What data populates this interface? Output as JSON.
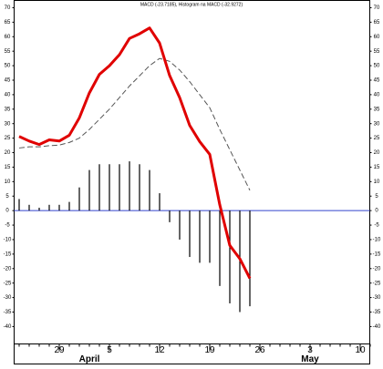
{
  "chart_data": {
    "type": "macd",
    "title": "MACD (-23.7185), Histogram na MACD (-32.9272)",
    "categories": [
      null,
      null,
      null,
      null,
      "29",
      null,
      null,
      null,
      null,
      "5",
      null,
      null,
      null,
      null,
      "12",
      null,
      null,
      null,
      null,
      "19",
      null,
      null,
      null,
      null,
      "26",
      null,
      null,
      null,
      null,
      "3",
      null,
      null,
      null,
      null,
      "10",
      null
    ],
    "months": [
      null,
      null,
      null,
      null,
      null,
      null,
      null,
      "April",
      null,
      null,
      null,
      null,
      null,
      null,
      null,
      null,
      null,
      null,
      null,
      null,
      null,
      null,
      null,
      null,
      null,
      null,
      null,
      null,
      null,
      "May",
      null,
      null,
      null,
      null,
      null,
      null
    ],
    "macd": {
      "color": "#e00000",
      "values": [
        25.6,
        24,
        22.8,
        24.4,
        24,
        26,
        32,
        40.6,
        47,
        50,
        53.8,
        59.4,
        61,
        63,
        57.8,
        46.6,
        39,
        29.4,
        23.8,
        19.4,
        2,
        -12,
        -16.6,
        -23.4,
        null,
        null,
        null,
        null,
        null,
        null,
        null,
        null,
        null,
        null,
        null,
        null
      ]
    },
    "signal": {
      "color": "#555555",
      "dashed": true,
      "values": [
        21.6,
        22,
        22,
        22.4,
        22.6,
        23.5,
        25,
        28,
        31.5,
        35,
        39,
        43,
        46.5,
        50,
        52.5,
        51.5,
        48.5,
        44.5,
        40,
        35.5,
        28,
        21,
        14,
        7,
        null,
        null,
        null,
        null,
        null,
        null,
        null,
        null,
        null,
        null,
        null,
        null
      ]
    },
    "histogram": {
      "color": "#000000",
      "values": [
        4,
        2,
        1,
        2,
        2,
        3,
        8,
        14,
        16,
        16,
        16,
        17,
        16,
        14,
        6,
        -4,
        -10,
        -16,
        -18,
        -18,
        -26,
        -32,
        -35,
        -33,
        null,
        null,
        null,
        null,
        null,
        null,
        null,
        null,
        null,
        null,
        null,
        null
      ]
    },
    "zero_line_color": "#3344cc",
    "ylim": [
      -46,
      72.5
    ],
    "yticks": [
      -40,
      -35,
      -30,
      -25,
      -20,
      -15,
      -10,
      -5,
      0,
      5,
      10,
      15,
      20,
      25,
      30,
      35,
      40,
      45,
      50,
      55,
      60,
      65,
      70
    ]
  }
}
